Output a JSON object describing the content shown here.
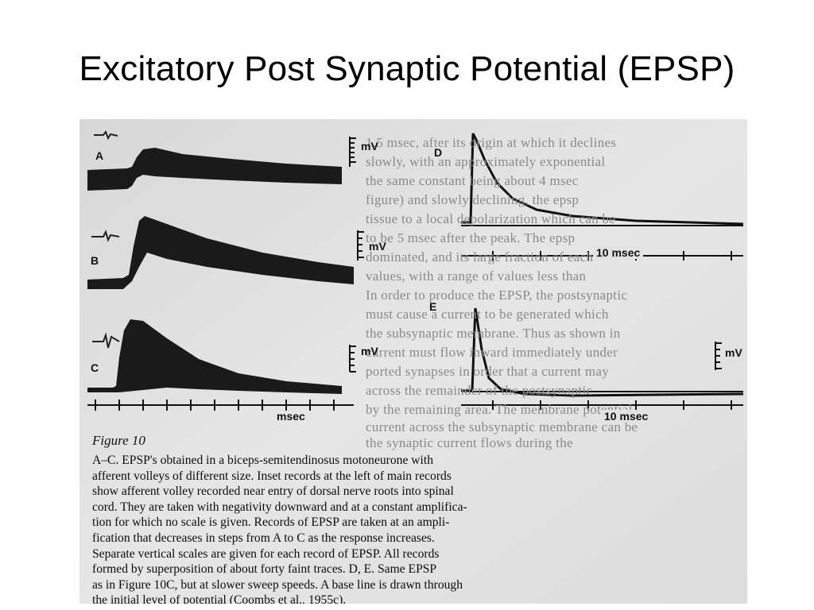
{
  "slide": {
    "title": "Excitatory Post Synaptic Potential (EPSP)"
  },
  "figure": {
    "panels": {
      "a": "A",
      "b": "B",
      "c": "C",
      "d": "D",
      "e": "E"
    },
    "units": {
      "mv_a": "mV",
      "mv_b": "mV",
      "mv_c": "mV",
      "mv_e": "mV",
      "msec_c": "msec",
      "msec_d": "10 msec",
      "msec_e": "10 msec"
    },
    "background_text": [
      "1.5 msec, after its origin at which it declines",
      "slowly, with an approximately exponential",
      "the same constant being about 4 msec",
      "figure) and slowly declining, the epsp",
      "tissue to a local depolarization which can be",
      "to be 5 msec after the peak. The epsp",
      "dominated, and its large fraction of each",
      "values, with a range of values less than",
      "In order to produce the EPSP, the postsynaptic",
      "must cause a current to be generated which",
      "the subsynaptic membrane. Thus as shown in",
      "current must flow inward immediately under",
      "ported synapses in order that a current may",
      "across the remainder of the postsynaptic",
      "by the remaining area. The membrane potential",
      "current across the subsynaptic membrane can be",
      "the synaptic current flows during the"
    ],
    "figure_label": "Figure 10",
    "caption_lines": [
      "A–C. EPSP's obtained in a biceps-semitendinosus motoneurone with",
      "afferent volleys of different size. Inset records at the left of main records",
      "show afferent volley recorded near entry of dorsal nerve roots into spinal",
      "cord. They are taken with negativity downward and at a constant amplifica-",
      "tion for which no scale is given. Records of EPSP are taken at an ampli-",
      "fication that decreases in steps from A to C as the response increases.",
      "Separate vertical scales are given for each record of EPSP. All records",
      "formed by superposition of about forty faint traces. D, E. Same EPSP",
      "as in Figure 10C, but at slower sweep speeds. A base line is drawn through",
      "the initial level of potential (Coombs et al., 1955c)."
    ]
  }
}
